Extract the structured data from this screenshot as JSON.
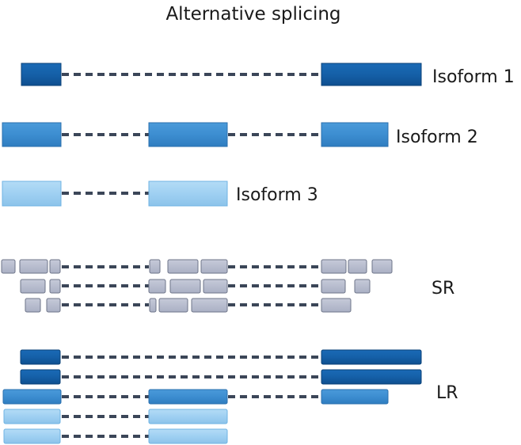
{
  "title": "Alternative splicing",
  "labels": {
    "isoform1": "Isoform 1",
    "isoform2": "Isoform 2",
    "isoform3": "Isoform 3",
    "short_reads": "SR",
    "long_reads": "LR"
  },
  "colors": {
    "isoform1_fill": "#1560a8",
    "isoform2_fill": "#3e8fd2",
    "isoform3_fill": "#9fd0f2",
    "short_read_fill": "#b9bed0",
    "intron_dash": "#3b4658"
  }
}
